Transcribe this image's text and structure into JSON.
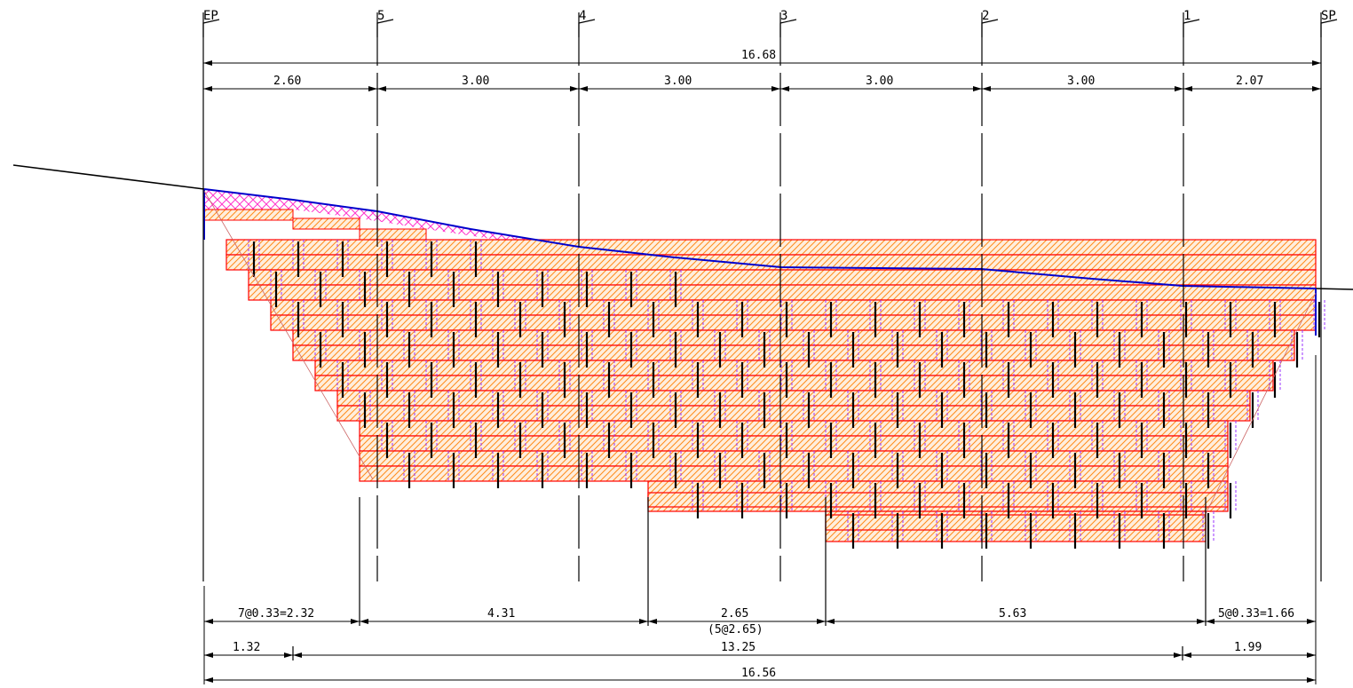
{
  "stations": [
    "EP",
    "5",
    "4",
    "3",
    "2",
    "1",
    "SP"
  ],
  "top_dims": {
    "total": "16.68",
    "segments": [
      "2.60",
      "3.00",
      "3.00",
      "3.00",
      "3.00",
      "2.07"
    ]
  },
  "bottom_dims": {
    "row1": [
      "7@0.33=2.32",
      "4.31",
      "2.65",
      "5.63",
      "5@0.33=1.66"
    ],
    "row1_note": "(5@2.65)",
    "row2": [
      "1.32",
      "13.25",
      "1.99"
    ],
    "total": "16.56"
  },
  "colors": {
    "ground_line": "#0000cc",
    "fill_boundary": "#ff0000",
    "hatch": "#ff8c1a",
    "backfill_crosshatch": "#ff33cc",
    "block_joint": "#9933ff",
    "dim_line": "#000000"
  }
}
